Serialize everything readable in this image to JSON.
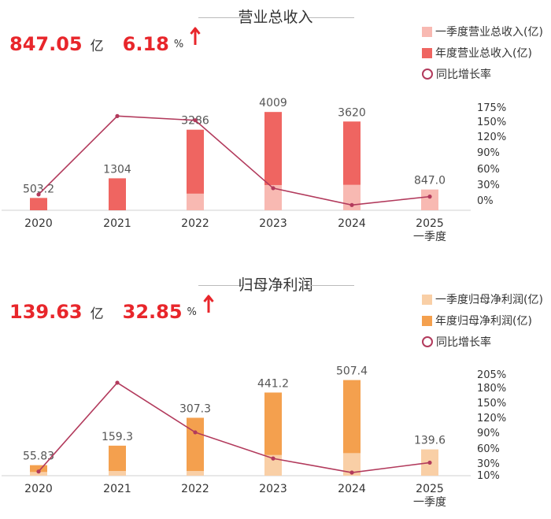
{
  "panels": [
    {
      "title": "营业总收入",
      "headline": {
        "value": "847.05",
        "unit": "亿",
        "growth": "6.18",
        "growth_unit": "%"
      },
      "legend": {
        "q1": "一季度营业总收入(亿)",
        "annual": "年度营业总收入(亿)",
        "yoy": "同比增长率"
      }
    },
    {
      "title": "归母净利润",
      "headline": {
        "value": "139.63",
        "unit": "亿",
        "growth": "32.85",
        "growth_unit": "%"
      },
      "legend": {
        "q1": "一季度归母净利润(亿)",
        "annual": "年度归母净利润(亿)",
        "yoy": "同比增长率"
      }
    }
  ],
  "colors": {
    "revenue_annual": "#ef6561",
    "revenue_q1": "#f8b9b2",
    "profit_annual": "#f4a04e",
    "profit_q1": "#f9cfa6",
    "yoy_line": "#b23a5c",
    "headline_red": "#e8262b"
  },
  "chart_data": [
    {
      "type": "bar",
      "title": "营业总收入",
      "categories": [
        "2020",
        "2021",
        "2022",
        "2023",
        "2024",
        "2025\n一季度"
      ],
      "series": [
        {
          "name": "一季度营业总收入(亿)",
          "values": [
            null,
            null,
            680,
            1030,
            1040,
            847.0
          ]
        },
        {
          "name": "年度营业总收入(亿)",
          "values": [
            503.2,
            1304,
            3286,
            4009,
            3620,
            null
          ]
        },
        {
          "name": "同比增长率",
          "axis": "right",
          "values": [
            10,
            159,
            151,
            22,
            -10,
            6
          ]
        }
      ],
      "value_labels": [
        "503.2",
        "1304",
        "3286",
        "4009",
        "3620",
        "847.0"
      ],
      "ylim": [
        0,
        4400
      ],
      "y2_ticks": [
        "175%",
        "150%",
        "120%",
        "90%",
        "60%",
        "30%",
        "0%"
      ],
      "y2lim": [
        -20,
        185
      ]
    },
    {
      "type": "bar",
      "title": "归母净利润",
      "categories": [
        "2020",
        "2021",
        "2022",
        "2023",
        "2024",
        "2025\n一季度"
      ],
      "series": [
        {
          "name": "一季度归母净利润(亿)",
          "values": [
            20,
            25,
            25,
            110,
            120,
            139.6
          ]
        },
        {
          "name": "年度归母净利润(亿)",
          "values": [
            55.83,
            159.3,
            307.3,
            441.2,
            507.4,
            null
          ]
        },
        {
          "name": "同比增长率",
          "axis": "right",
          "values": [
            16,
            186,
            91,
            41,
            14,
            33
          ]
        }
      ],
      "value_labels": [
        "55.83",
        "159.3",
        "307.3",
        "441.2",
        "507.4",
        "139.6"
      ],
      "ylim": [
        0,
        560
      ],
      "y2_ticks": [
        "205%",
        "180%",
        "150%",
        "120%",
        "90%",
        "60%",
        "30%",
        "10%"
      ],
      "y2lim": [
        8,
        210
      ]
    }
  ]
}
